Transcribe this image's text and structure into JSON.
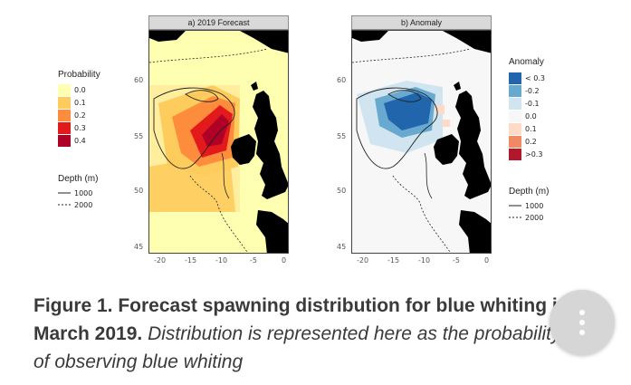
{
  "panels": {
    "forecast": {
      "title": "a) 2019 Forecast",
      "x_ticks": [
        "-20",
        "-15",
        "-10",
        "-5",
        "0"
      ],
      "y_ticks": [
        "60",
        "55",
        "50",
        "45"
      ]
    },
    "anomaly": {
      "title": "b) Anomaly",
      "x_ticks": [
        "-20",
        "-15",
        "-10",
        "-5",
        "0"
      ],
      "y_ticks": [
        "60",
        "55",
        "50",
        "45"
      ]
    }
  },
  "legend_probability": {
    "title": "Probability",
    "items": [
      {
        "label": "0.0",
        "color": "#ffffb2"
      },
      {
        "label": "0.1",
        "color": "#fecc5c"
      },
      {
        "label": "0.2",
        "color": "#fd8d3c"
      },
      {
        "label": "0.3",
        "color": "#e31a1c"
      },
      {
        "label": "0.4",
        "color": "#b10026"
      }
    ]
  },
  "legend_anomaly": {
    "title": "Anomaly",
    "items": [
      {
        "label": "< 0.3",
        "color": "#2166ac"
      },
      {
        "label": "-0.2",
        "color": "#67a9cf"
      },
      {
        "label": "-0.1",
        "color": "#d1e5f0"
      },
      {
        "label": "0.0",
        "color": "#f7f7f7"
      },
      {
        "label": "0.1",
        "color": "#fddbc7"
      },
      {
        "label": "0.2",
        "color": "#ef8a62"
      },
      {
        "label": ">0.3",
        "color": "#b2182b"
      }
    ]
  },
  "legend_depth_left": {
    "title": "Depth (m)",
    "items": [
      {
        "label": "1000",
        "style": "solid"
      },
      {
        "label": "2000",
        "style": "dotted"
      }
    ]
  },
  "legend_depth_right": {
    "title": "Depth (m)",
    "items": [
      {
        "label": "1000",
        "style": "solid"
      },
      {
        "label": "2000",
        "style": "dotted"
      }
    ]
  },
  "caption": {
    "bold": "Figure 1. Forecast spawning distribution for blue whiting in March 2019.",
    "italic": "Distribution is represented here as the probability of observing blue whiting"
  },
  "fab": {
    "icon": "more-vertical-icon"
  }
}
